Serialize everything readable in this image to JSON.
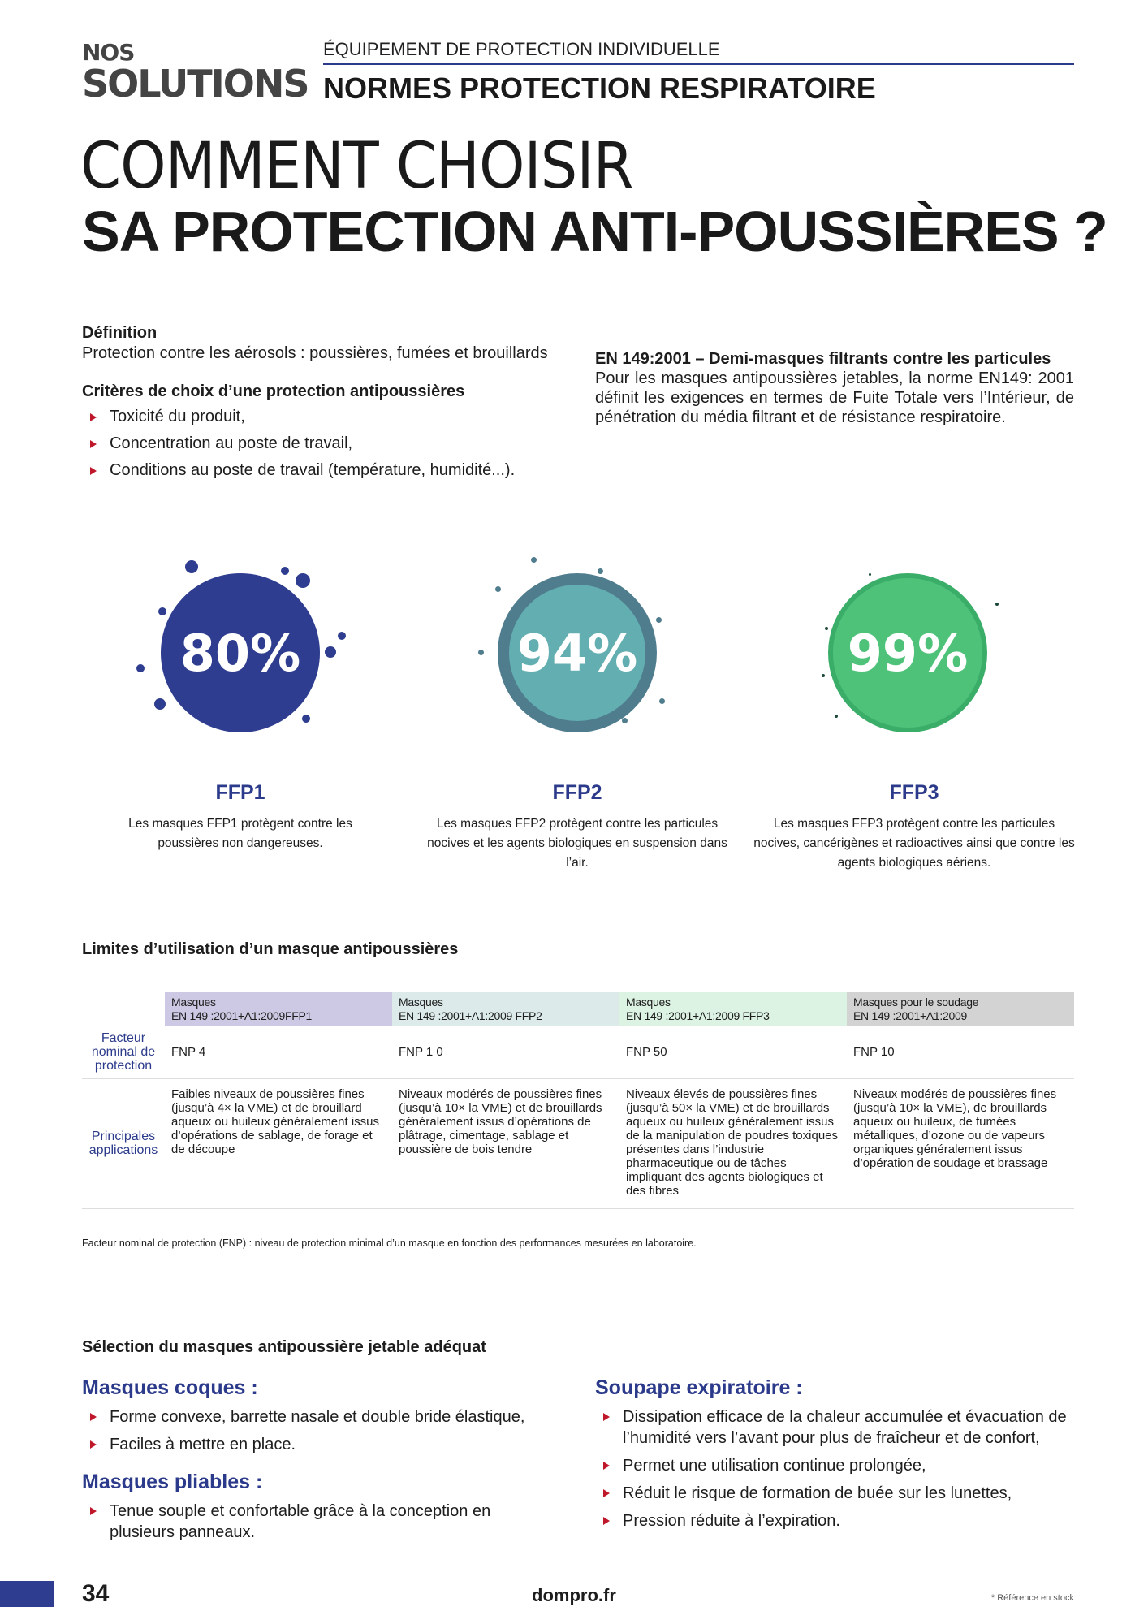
{
  "header": {
    "nos": "NOS",
    "solutions": "SOLUTIONS",
    "category": "ÉQUIPEMENT DE PROTECTION INDIVIDUELLE",
    "section": "NORMES PROTECTION RESPIRATOIRE"
  },
  "title": {
    "line1": "COMMENT CHOISIR",
    "line2": "SA PROTECTION ANTI-POUSSIÈRES ?"
  },
  "definition": {
    "heading": "Définition",
    "text": "Protection contre les aérosols : poussières, fumées et brouillards"
  },
  "criteria": {
    "heading": "Critères de choix d’une protection antipoussières",
    "items": [
      "Toxicité du produit,",
      "Concentration au poste de travail,",
      "Conditions au poste de travail (température, humidité...)."
    ]
  },
  "norm": {
    "heading": "EN 149:2001 – Demi-masques filtrants contre les particules",
    "text": "Pour les masques antipoussières jetables, la norme EN149: 2001 définit les exigences en termes de Fuite Totale vers l’Intérieur, de pénétration du média filtrant et de résistance respiratoire."
  },
  "classes": [
    {
      "percent": "80%",
      "name": "FFP1",
      "desc": "Les masques FFP1 protègent contre les poussières non dangereuses.",
      "color": "#2e3d8f"
    },
    {
      "percent": "94%",
      "name": "FFP2",
      "desc": "Les masques FFP2 protègent contre les particules nocives et les agents biologiques en suspension dans l’air.",
      "color": "#62aeb0"
    },
    {
      "percent": "99%",
      "name": "FFP3",
      "desc": "Les masques FFP3 protègent contre les particules nocives, cancérigènes et radioactives ainsi que contre les agents biologiques aériens.",
      "color": "#4fc27a"
    }
  ],
  "limits": {
    "heading": "Limites d’utilisation d’un masque antipoussières",
    "columns": [
      {
        "l1": "Masques",
        "l2": "EN 149 :2001+A1:2009FFP1",
        "bg": "#cdc9e4"
      },
      {
        "l1": "Masques",
        "l2": "EN 149 :2001+A1:2009 FFP2",
        "bg": "#dcebea"
      },
      {
        "l1": "Masques",
        "l2": "EN 149 :2001+A1:2009 FFP3",
        "bg": "#dcf2e2"
      },
      {
        "l1": "Masques pour le soudage",
        "l2": "EN 149 :2001+A1:2009",
        "bg": "#d3d3d3"
      }
    ],
    "row_fnp": {
      "label": "Facteur nominal de protection",
      "values": [
        "FNP 4",
        "FNP 1 0",
        "FNP 50",
        "FNP 10"
      ]
    },
    "row_apps": {
      "label": "Principales applications",
      "values": [
        "Faibles niveaux de poussières fines (jusqu’à 4× la VME) et de brouillard aqueux ou huileux généralement issus d’opérations de sablage, de forage et de découpe",
        "Niveaux modérés de poussières fines (jusqu’à 10× la VME) et de brouillards généralement issus d’opérations de plâtrage, cimentage, sablage et poussière de bois tendre",
        "Niveaux élevés de poussières fines (jusqu’à 50× la VME) et de brouillards aqueux ou huileux généralement issus de la manipulation de poudres toxiques présentes dans l’industrie pharmaceutique ou de tâches impliquant des agents biologiques et des fibres",
        "Niveaux modérés de poussières fines (jusqu’à 10× la VME), de brouillards aqueux ou huileux, de fumées métalliques, d’ozone ou de vapeurs organiques généralement issus d’opération de soudage et brassage"
      ]
    },
    "footnote": "Facteur nominal de protection (FNP) : niveau de protection minimal d’un masque en fonction des performances mesurées en laboratoire."
  },
  "selection": {
    "heading": "Sélection du masques antipoussière jetable adéquat",
    "coques": {
      "title": "Masques coques :",
      "items": [
        "Forme convexe, barrette nasale et double bride élastique,",
        "Faciles à mettre en place."
      ]
    },
    "pliables": {
      "title": "Masques pliables :",
      "items": [
        "Tenue souple et confortable grâce à la conception en plusieurs panneaux."
      ]
    },
    "soupape": {
      "title": "Soupape expiratoire :",
      "items": [
        "Dissipation efficace de la chaleur accumulée et évacuation de l’humidité vers l’avant pour plus de fraîcheur et de confort,",
        "Permet une utilisation continue prolongée,",
        "Réduit le risque de formation de buée sur les lunettes,",
        "Pression réduite à l’expiration."
      ]
    }
  },
  "footer": {
    "page": "34",
    "site": "dompro.fr",
    "note": "* Référence en stock"
  }
}
